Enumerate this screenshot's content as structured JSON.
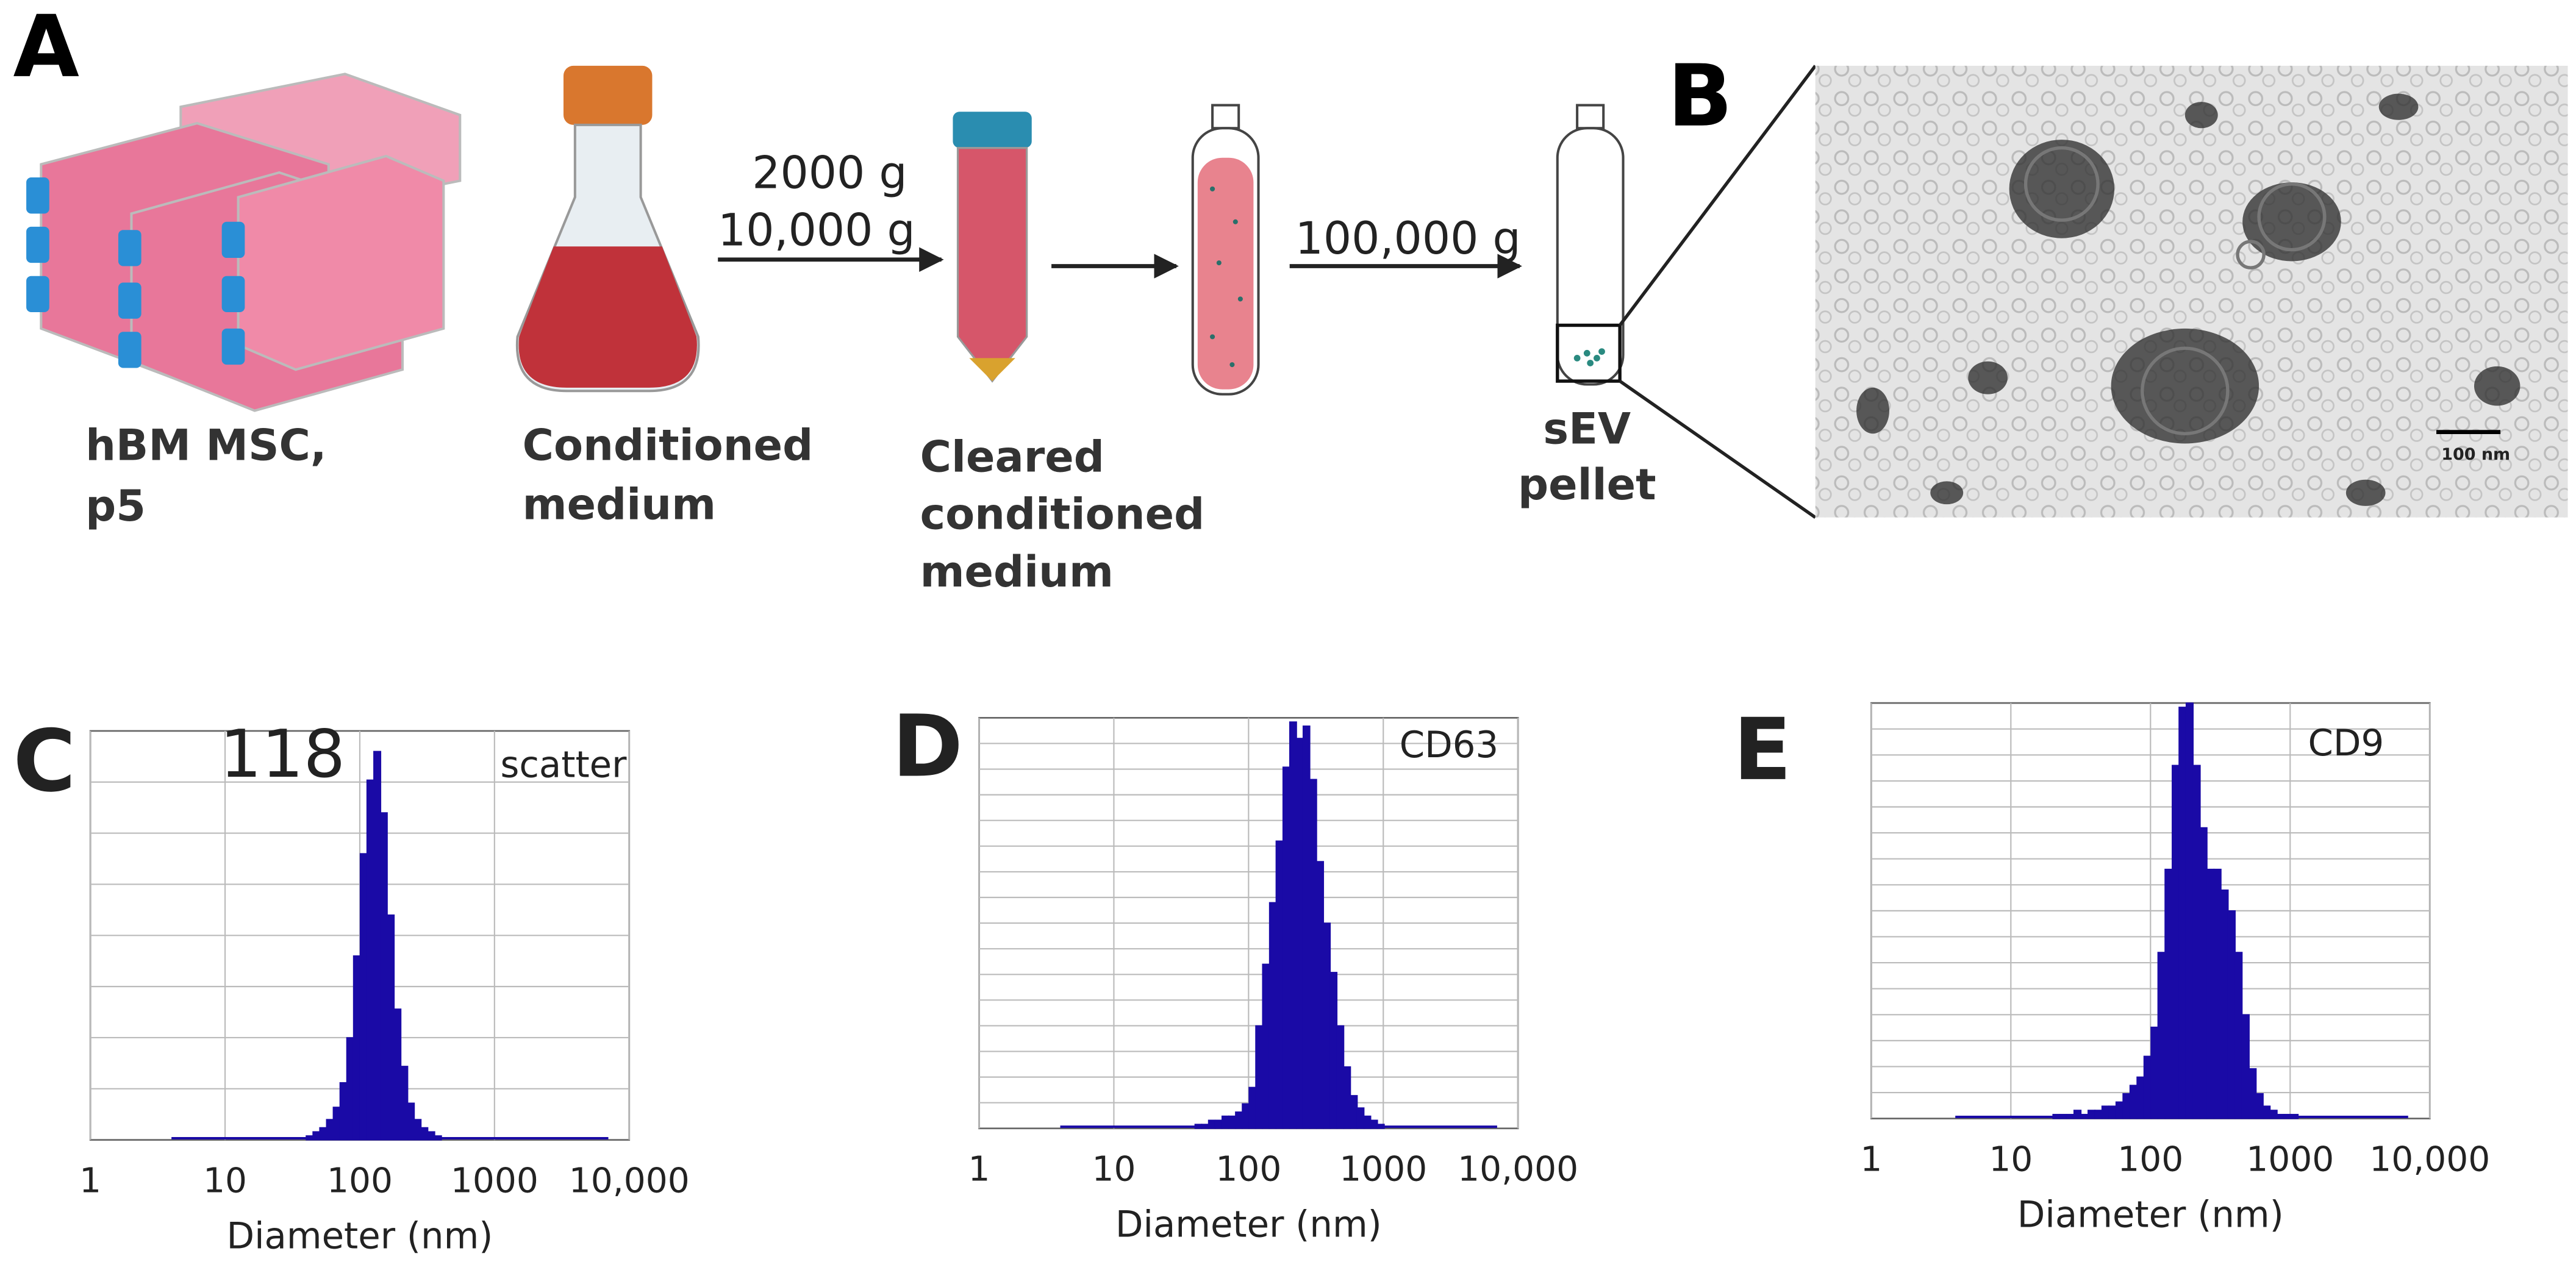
{
  "panel_a": {
    "label": "A",
    "cells": [
      "hBM MSC,",
      "p5"
    ],
    "conditioned_medium": [
      "Conditioned",
      "medium"
    ],
    "cleared_medium": [
      "Cleared",
      "conditioned",
      "medium"
    ],
    "pellet": [
      "sEV",
      "pellet"
    ],
    "arrow_1_labels": [
      "2000 g",
      "10,000 g"
    ],
    "arrow_3_labels": [
      "100,000 g"
    ]
  },
  "panel_b": {
    "label": "B",
    "scale_bar": "100 nm"
  },
  "chart_data": [
    {
      "type": "histogram",
      "panel": "C",
      "annotations": [
        "118",
        "scatter"
      ],
      "x_label": "Diameter (nm)",
      "log_x": true,
      "xlim": [
        1,
        10000
      ],
      "xticks": [
        1,
        10,
        100,
        1000,
        {
          "value": 10000,
          "label": "10,000"
        }
      ],
      "ylim": [
        0,
        100
      ],
      "yticks": [
        12.5,
        25,
        37.5,
        50,
        62.5,
        75,
        87.5
      ],
      "grid": true,
      "color": "#1a0aa6",
      "bins": [
        40,
        44.9,
        50.4,
        56.6,
        63.5,
        71.3,
        80,
        89.8,
        100.8,
        113,
        127,
        143,
        160,
        180,
        202,
        227,
        254,
        285,
        320,
        360,
        404
      ],
      "values": [
        1,
        2,
        3,
        5,
        8,
        14,
        25,
        45,
        70,
        88,
        95,
        80,
        55,
        32,
        18,
        9,
        5,
        3,
        2,
        1
      ]
    },
    {
      "type": "histogram",
      "panel": "D",
      "annotations": [
        "CD63"
      ],
      "x_label": "Diameter (nm)",
      "log_x": true,
      "xlim": [
        1,
        10000
      ],
      "xticks": [
        1,
        10,
        100,
        1000,
        {
          "value": 10000,
          "label": "10,000"
        }
      ],
      "ylim": [
        0,
        100
      ],
      "yticks": [
        6.25,
        12.5,
        18.75,
        25,
        31.25,
        37.5,
        43.75,
        50,
        56.25,
        62.5,
        68.75,
        75,
        81.25,
        87.5,
        93.75
      ],
      "grid": true,
      "color": "#1a0aa6",
      "bins": [
        40,
        44.9,
        50.4,
        56.6,
        63.5,
        71.3,
        80,
        89.8,
        100.8,
        113,
        127,
        143,
        160,
        180,
        202,
        227,
        254,
        285,
        320,
        360,
        404,
        453,
        509,
        571,
        641,
        719,
        807,
        906,
        1017
      ],
      "values": [
        1,
        1,
        2,
        2,
        3,
        3,
        4,
        6,
        10,
        25,
        40,
        55,
        70,
        88,
        99,
        95,
        98,
        85,
        65,
        50,
        38,
        25,
        15,
        8,
        5,
        3,
        2,
        1
      ]
    },
    {
      "type": "histogram",
      "panel": "E",
      "annotations": [
        "CD9"
      ],
      "x_label": "Diameter (nm)",
      "log_x": true,
      "xlim": [
        1,
        10000
      ],
      "xticks": [
        1,
        10,
        100,
        1000,
        {
          "value": 10000,
          "label": "10,000"
        }
      ],
      "ylim": [
        0,
        100
      ],
      "yticks": [
        6.25,
        12.5,
        18.75,
        25,
        31.25,
        37.5,
        43.75,
        50,
        56.25,
        62.5,
        68.75,
        75,
        81.25,
        87.5,
        93.75
      ],
      "grid": true,
      "color": "#1a0aa6",
      "bins": [
        20,
        22.4,
        25.2,
        28.3,
        31.8,
        35.7,
        40,
        44.9,
        50.4,
        56.6,
        63.5,
        71.3,
        80,
        89.8,
        100.8,
        113,
        127,
        143,
        160,
        180,
        202,
        227,
        254,
        285,
        320,
        360,
        404,
        453,
        509,
        571,
        641,
        719,
        807,
        906,
        1017,
        1141
      ],
      "values": [
        1,
        1,
        1,
        2,
        1,
        2,
        2,
        3,
        3,
        4,
        6,
        8,
        10,
        15,
        22,
        40,
        60,
        85,
        99,
        100,
        85,
        70,
        60,
        60,
        55,
        50,
        40,
        25,
        12,
        6,
        3,
        2,
        1,
        1,
        1
      ]
    }
  ]
}
